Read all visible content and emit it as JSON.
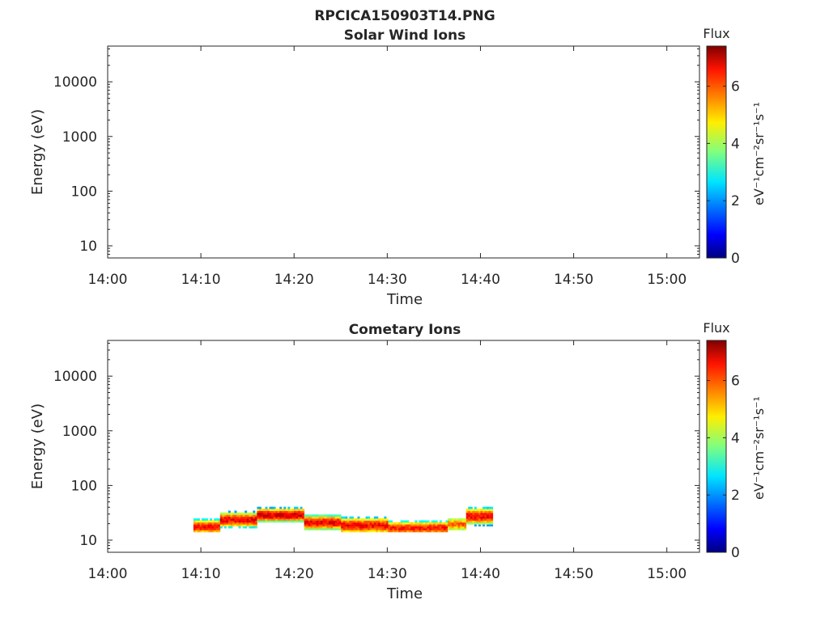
{
  "figure": {
    "filename": "RPCICA150903T14.PNG"
  },
  "colors": {
    "axis": "#262626",
    "colormap": "jet"
  },
  "chart_data": [
    {
      "type": "heatmap",
      "title": "Solar Wind Ions",
      "xlabel": "Time",
      "ylabel": "Energy (eV)",
      "x_tick_labels": [
        "14:00",
        "14:10",
        "14:20",
        "14:30",
        "14:40",
        "14:50",
        "15:00"
      ],
      "x_tick_minutes": [
        0,
        10,
        20,
        30,
        40,
        50,
        60
      ],
      "xlim_minutes": [
        0,
        63.5
      ],
      "y_scale": "log",
      "y_tick_labels": [
        "10",
        "100",
        "1000",
        "10000"
      ],
      "y_tick_values": [
        10,
        100,
        1000,
        10000
      ],
      "ylim": [
        6,
        45000
      ],
      "colorbar": {
        "title": "Flux",
        "label": "eV⁻¹cm⁻²sr⁻¹s⁻¹",
        "ticks": [
          "0",
          "2",
          "4",
          "6"
        ],
        "tick_values": [
          0,
          2,
          4,
          6
        ],
        "range": [
          0,
          7.4
        ]
      },
      "bands": []
    },
    {
      "type": "heatmap",
      "title": "Cometary Ions",
      "xlabel": "Time",
      "ylabel": "Energy (eV)",
      "x_tick_labels": [
        "14:00",
        "14:10",
        "14:20",
        "14:30",
        "14:40",
        "14:50",
        "15:00"
      ],
      "x_tick_minutes": [
        0,
        10,
        20,
        30,
        40,
        50,
        60
      ],
      "xlim_minutes": [
        0,
        63.5
      ],
      "y_scale": "log",
      "y_tick_labels": [
        "10",
        "100",
        "1000",
        "10000"
      ],
      "y_tick_values": [
        10,
        100,
        1000,
        10000
      ],
      "ylim": [
        6,
        45000
      ],
      "colorbar": {
        "title": "Flux",
        "label": "eV⁻¹cm⁻²sr⁻¹s⁻¹",
        "ticks": [
          "0",
          "2",
          "4",
          "6"
        ],
        "tick_values": [
          0,
          2,
          4,
          6
        ],
        "range": [
          0,
          7.4
        ]
      },
      "time_range_minutes": [
        9.2,
        41.3
      ],
      "bands": [
        {
          "t_start": 9.2,
          "t_end": 12.0,
          "e_low": 14,
          "e_high": 22.5,
          "flux": 6.4
        },
        {
          "t_start": 12.0,
          "t_end": 16.0,
          "e_low": 18.5,
          "e_high": 30,
          "flux": 6.6
        },
        {
          "t_start": 16.0,
          "t_end": 21.0,
          "e_low": 23,
          "e_high": 36,
          "flux": 6.8
        },
        {
          "t_start": 21.0,
          "t_end": 25.0,
          "e_low": 16.5,
          "e_high": 27,
          "flux": 6.6
        },
        {
          "t_start": 25.0,
          "t_end": 30.0,
          "e_low": 14.5,
          "e_high": 24,
          "flux": 6.5
        },
        {
          "t_start": 30.0,
          "t_end": 36.5,
          "e_low": 13.5,
          "e_high": 21,
          "flux": 6.3
        },
        {
          "t_start": 36.5,
          "t_end": 38.5,
          "e_low": 16,
          "e_high": 24,
          "flux": 5.8
        },
        {
          "t_start": 38.5,
          "t_end": 41.3,
          "e_low": 21,
          "e_high": 36,
          "flux": 6.5
        }
      ]
    }
  ]
}
